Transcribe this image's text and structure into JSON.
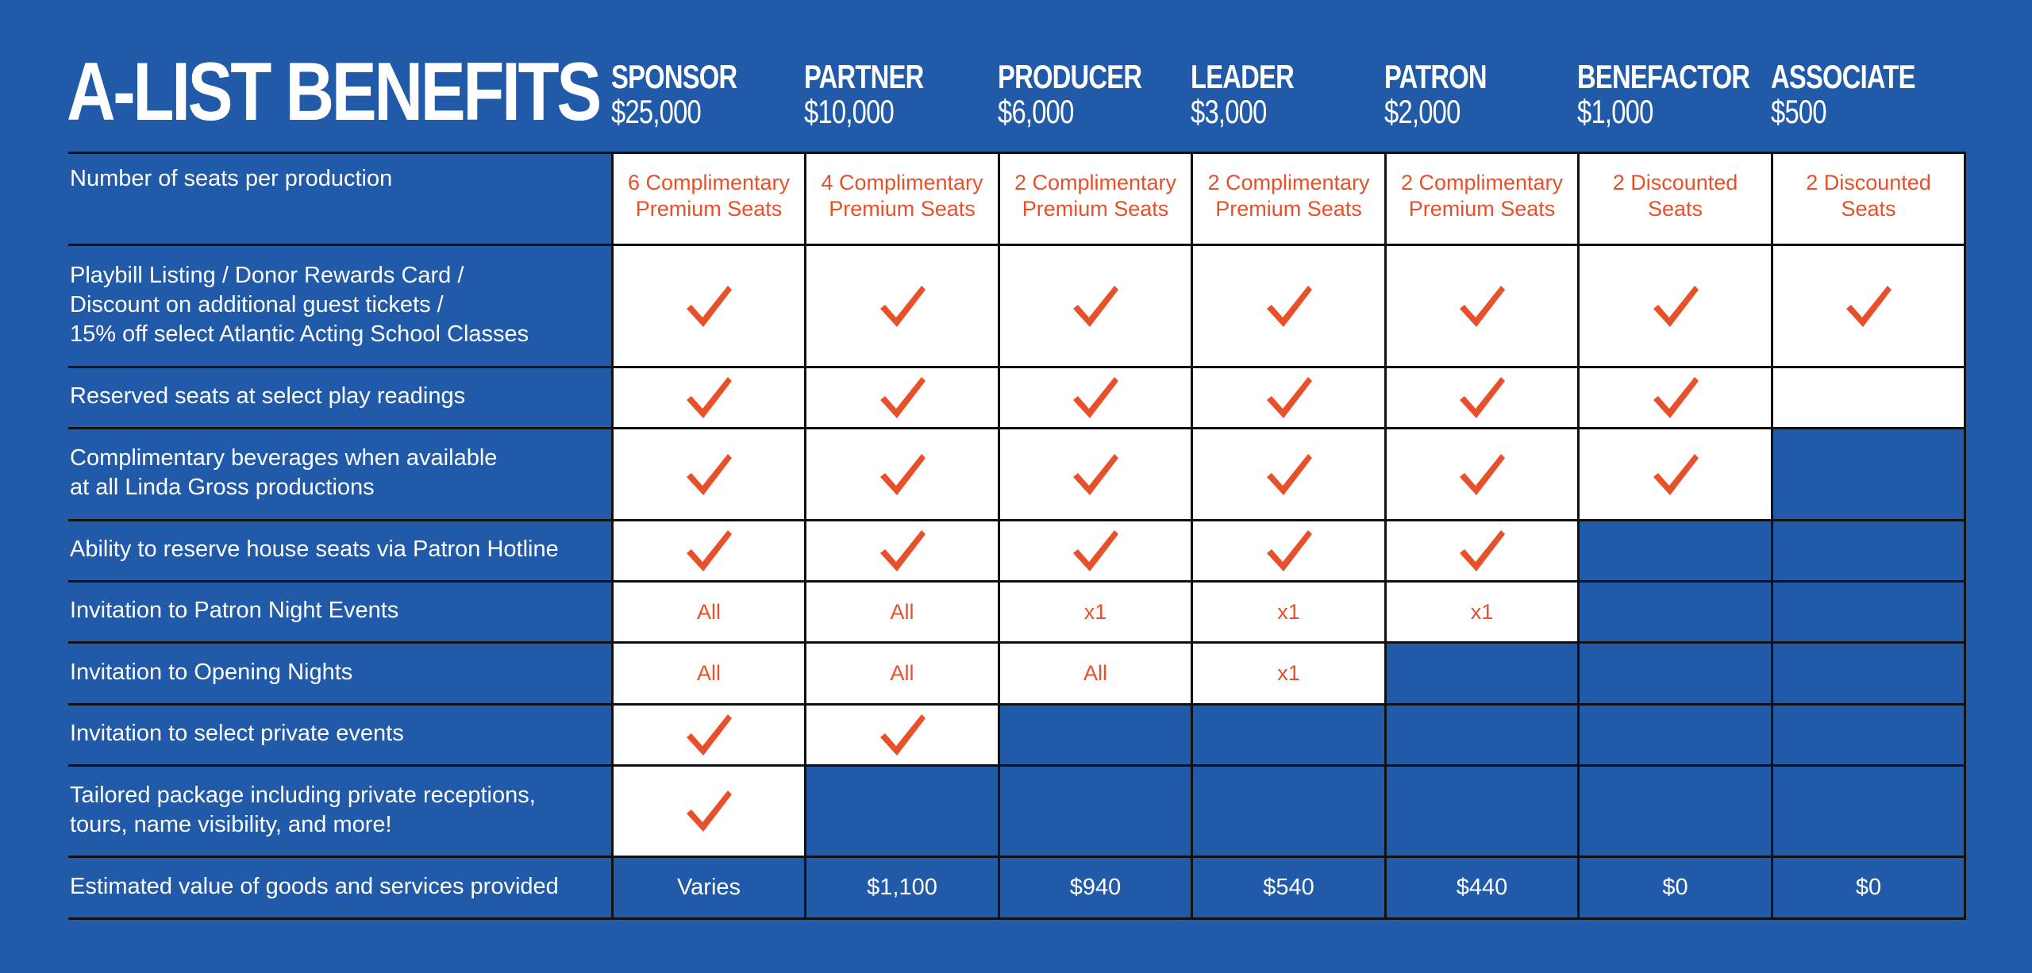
{
  "title": "A-LIST BENEFITS",
  "tiers": [
    {
      "name": "SPONSOR",
      "price": "$25,000"
    },
    {
      "name": "PARTNER",
      "price": "$10,000"
    },
    {
      "name": "PRODUCER",
      "price": "$6,000"
    },
    {
      "name": "LEADER",
      "price": "$3,000"
    },
    {
      "name": "PATRON",
      "price": "$2,000"
    },
    {
      "name": "BENEFACTOR",
      "price": "$1,000"
    },
    {
      "name": "ASSOCIATE",
      "price": "$500"
    }
  ],
  "rows": [
    {
      "label": [
        "Number of seats per production"
      ],
      "cells": [
        {
          "t": "text",
          "v": [
            "6 Complimentary",
            "Premium Seats"
          ]
        },
        {
          "t": "text",
          "v": [
            "4 Complimentary",
            "Premium Seats"
          ]
        },
        {
          "t": "text",
          "v": [
            "2 Complimentary",
            "Premium Seats"
          ]
        },
        {
          "t": "text",
          "v": [
            "2 Complimentary",
            "Premium Seats"
          ]
        },
        {
          "t": "text",
          "v": [
            "2 Complimentary",
            "Premium Seats"
          ]
        },
        {
          "t": "text",
          "v": [
            "2 Discounted",
            "Seats"
          ]
        },
        {
          "t": "text",
          "v": [
            "2 Discounted",
            "Seats"
          ]
        }
      ]
    },
    {
      "label": [
        "Playbill Listing / Donor Rewards Card /",
        "Discount on additional guest tickets /",
        "15% off select Atlantic Acting School Classes"
      ],
      "cells": [
        {
          "t": "check"
        },
        {
          "t": "check"
        },
        {
          "t": "check"
        },
        {
          "t": "check"
        },
        {
          "t": "check"
        },
        {
          "t": "check"
        },
        {
          "t": "check"
        }
      ]
    },
    {
      "label": [
        "Reserved seats at select play readings"
      ],
      "cells": [
        {
          "t": "check"
        },
        {
          "t": "check"
        },
        {
          "t": "check"
        },
        {
          "t": "check"
        },
        {
          "t": "check"
        },
        {
          "t": "check"
        },
        {
          "t": "empty"
        }
      ]
    },
    {
      "label": [
        "Complimentary beverages when available",
        "at all Linda Gross productions"
      ],
      "cells": [
        {
          "t": "check"
        },
        {
          "t": "check"
        },
        {
          "t": "check"
        },
        {
          "t": "check"
        },
        {
          "t": "check"
        },
        {
          "t": "check"
        },
        {
          "t": "none"
        }
      ]
    },
    {
      "label": [
        "Ability to reserve house seats via Patron Hotline"
      ],
      "cells": [
        {
          "t": "check"
        },
        {
          "t": "check"
        },
        {
          "t": "check"
        },
        {
          "t": "check"
        },
        {
          "t": "check"
        },
        {
          "t": "none"
        },
        {
          "t": "none"
        }
      ]
    },
    {
      "label": [
        "Invitation to Patron Night Events"
      ],
      "cells": [
        {
          "t": "text",
          "v": [
            "All"
          ]
        },
        {
          "t": "text",
          "v": [
            "All"
          ]
        },
        {
          "t": "text",
          "v": [
            "x1"
          ]
        },
        {
          "t": "text",
          "v": [
            "x1"
          ]
        },
        {
          "t": "text",
          "v": [
            "x1"
          ]
        },
        {
          "t": "none"
        },
        {
          "t": "none"
        }
      ]
    },
    {
      "label": [
        "Invitation to Opening Nights"
      ],
      "cells": [
        {
          "t": "text",
          "v": [
            "All"
          ]
        },
        {
          "t": "text",
          "v": [
            "All"
          ]
        },
        {
          "t": "text",
          "v": [
            "All"
          ]
        },
        {
          "t": "text",
          "v": [
            "x1"
          ]
        },
        {
          "t": "none"
        },
        {
          "t": "none"
        },
        {
          "t": "none"
        }
      ]
    },
    {
      "label": [
        "Invitation to select private events"
      ],
      "cells": [
        {
          "t": "check"
        },
        {
          "t": "check"
        },
        {
          "t": "none"
        },
        {
          "t": "none"
        },
        {
          "t": "none"
        },
        {
          "t": "none"
        },
        {
          "t": "none"
        }
      ]
    },
    {
      "label": [
        "Tailored package including private receptions,",
        "tours, name visibility, and more!"
      ],
      "cells": [
        {
          "t": "check"
        },
        {
          "t": "none"
        },
        {
          "t": "none"
        },
        {
          "t": "none"
        },
        {
          "t": "none"
        },
        {
          "t": "none"
        },
        {
          "t": "none"
        }
      ]
    },
    {
      "label": [
        "Estimated value of goods and services provided"
      ],
      "cells": [
        {
          "t": "value",
          "v": [
            "Varies"
          ]
        },
        {
          "t": "value",
          "v": [
            "$1,100"
          ]
        },
        {
          "t": "value",
          "v": [
            "$940"
          ]
        },
        {
          "t": "value",
          "v": [
            "$540"
          ]
        },
        {
          "t": "value",
          "v": [
            "$440"
          ]
        },
        {
          "t": "value",
          "v": [
            "$0"
          ]
        },
        {
          "t": "value",
          "v": [
            "$0"
          ]
        }
      ]
    }
  ],
  "colors": {
    "background": "#205aa8",
    "accent": "#e8502a",
    "line": "#111111",
    "cell": "#ffffff"
  },
  "icons": {
    "check": "checkmark-icon"
  }
}
